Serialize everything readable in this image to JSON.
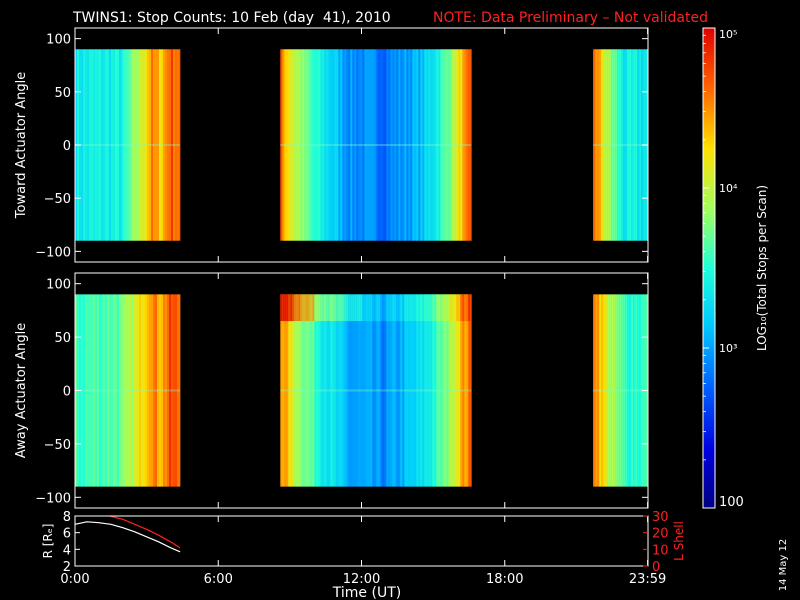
{
  "header": {
    "title": "TWINS1: Stop Counts: 10 Feb (day  41), 2010",
    "note": "NOTE: Data Preliminary – Not validated",
    "note_color": "#ff2020"
  },
  "footer": {
    "xlabel": "Time (UT)",
    "date_stamp": "14 May 12"
  },
  "colorbar": {
    "label": "LOG₁₀(Total Stops per Scan)",
    "ticks": [
      "10⁵",
      "10⁴",
      "10³",
      "100"
    ],
    "range": [
      100,
      100000
    ],
    "scale": "log"
  },
  "chart_data": [
    {
      "type": "heatmap",
      "ylabel": "Toward Actuator Angle",
      "ylim": [
        -110,
        110
      ],
      "ytick_labels": [
        "100",
        "50",
        "0",
        "−50",
        "−100"
      ],
      "xtick_labels": [
        "0:00",
        "6:00",
        "12:00",
        "18:00",
        "23:59"
      ],
      "data_y_range": [
        -90,
        90
      ],
      "segments": [
        {
          "start_hour": 0.0,
          "end_hour": 4.4
        },
        {
          "start_hour": 8.6,
          "end_hour": 16.6
        },
        {
          "start_hour": 21.7,
          "end_hour": 24.0
        }
      ],
      "log_counts_profile": [
        {
          "hour": 0.0,
          "log": 3.35
        },
        {
          "hour": 2.0,
          "log": 3.4
        },
        {
          "hour": 2.6,
          "log": 3.9
        },
        {
          "hour": 3.2,
          "log": 4.5
        },
        {
          "hour": 3.6,
          "log": 4.3
        },
        {
          "hour": 4.0,
          "log": 4.7
        },
        {
          "hour": 4.4,
          "log": 4.6
        },
        {
          "hour": 8.6,
          "log": 4.6
        },
        {
          "hour": 9.2,
          "log": 4.0
        },
        {
          "hour": 10.0,
          "log": 3.5
        },
        {
          "hour": 11.5,
          "log": 2.95
        },
        {
          "hour": 13.0,
          "log": 2.85
        },
        {
          "hour": 14.5,
          "log": 3.1
        },
        {
          "hour": 15.5,
          "log": 3.6
        },
        {
          "hour": 16.2,
          "log": 4.3
        },
        {
          "hour": 16.6,
          "log": 4.6
        },
        {
          "hour": 21.7,
          "log": 4.7
        },
        {
          "hour": 22.3,
          "log": 3.9
        },
        {
          "hour": 23.0,
          "log": 3.35
        },
        {
          "hour": 24.0,
          "log": 3.35
        }
      ]
    },
    {
      "type": "heatmap",
      "ylabel": "Away Actuator Angle",
      "ylim": [
        -110,
        110
      ],
      "ytick_labels": [
        "100",
        "50",
        "0",
        "−50",
        "−100"
      ],
      "xtick_labels": [
        "0:00",
        "6:00",
        "12:00",
        "18:00",
        "23:59"
      ],
      "data_y_range": [
        -90,
        90
      ],
      "segments": [
        {
          "start_hour": 0.0,
          "end_hour": 4.4
        },
        {
          "start_hour": 8.6,
          "end_hour": 16.6
        },
        {
          "start_hour": 21.7,
          "end_hour": 24.0
        }
      ],
      "log_counts_profile": [
        {
          "hour": 0.0,
          "log": 3.55
        },
        {
          "hour": 2.0,
          "log": 3.7
        },
        {
          "hour": 2.6,
          "log": 4.1
        },
        {
          "hour": 3.2,
          "log": 4.6
        },
        {
          "hour": 3.6,
          "log": 4.4
        },
        {
          "hour": 4.0,
          "log": 4.7
        },
        {
          "hour": 4.4,
          "log": 4.6
        },
        {
          "hour": 8.6,
          "log": 4.6
        },
        {
          "hour": 9.2,
          "log": 4.0
        },
        {
          "hour": 10.0,
          "log": 3.6
        },
        {
          "hour": 11.5,
          "log": 3.0
        },
        {
          "hour": 13.0,
          "log": 2.9
        },
        {
          "hour": 14.5,
          "log": 3.25
        },
        {
          "hour": 15.5,
          "log": 3.7
        },
        {
          "hour": 16.2,
          "log": 4.4
        },
        {
          "hour": 16.6,
          "log": 4.6
        },
        {
          "hour": 21.7,
          "log": 4.7
        },
        {
          "hour": 22.3,
          "log": 4.0
        },
        {
          "hour": 23.0,
          "log": 3.55
        },
        {
          "hour": 24.0,
          "log": 3.55
        }
      ]
    },
    {
      "type": "line",
      "ylabel": "R [Rₑ]",
      "ylabel_right": "L Shell",
      "ylim": [
        2,
        8
      ],
      "ytick_labels": [
        "8",
        "6",
        "4",
        "2"
      ],
      "ylim_right": [
        0,
        30
      ],
      "ytick_labels_right": [
        "30",
        "20",
        "10",
        "0"
      ],
      "xtick_labels": [
        "0:00",
        "6:00",
        "12:00",
        "18:00",
        "23:59"
      ],
      "series": [
        {
          "color": "#ffffff",
          "x": [
            0.0,
            0.5,
            1.0,
            1.5,
            2.0,
            2.5,
            3.0,
            3.5,
            4.0,
            4.4
          ],
          "y": [
            7.0,
            7.3,
            7.2,
            7.0,
            6.6,
            6.1,
            5.5,
            4.9,
            4.2,
            3.7
          ]
        },
        {
          "color": "#ff2020",
          "axis": "right",
          "x": [
            1.45,
            2.0,
            2.5,
            3.0,
            3.5,
            4.0,
            4.4
          ],
          "y": [
            30,
            28,
            25,
            22,
            18.5,
            14.5,
            11
          ]
        }
      ]
    }
  ]
}
